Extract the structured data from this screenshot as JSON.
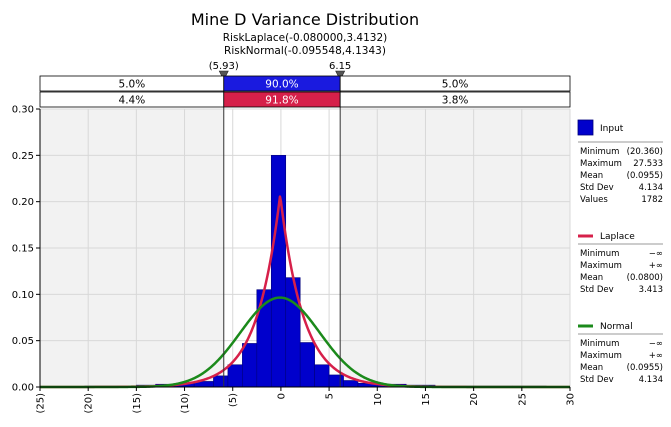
{
  "chart_data": {
    "type": "bar",
    "title": "Mine D Variance Distribution",
    "subtitles": [
      "RiskLaplace(-0.080000,3.4132)",
      "RiskNormal(-0.095548,4.1343)"
    ],
    "xlim": [
      -25,
      30
    ],
    "ylim": [
      0,
      0.3
    ],
    "x_ticks": [
      -25,
      -20,
      -15,
      -10,
      -5,
      0,
      5,
      10,
      15,
      20,
      25,
      30
    ],
    "x_tick_labels": [
      "(25)",
      "(20)",
      "(15)",
      "(10)",
      "(5)",
      "0",
      "5",
      "10",
      "15",
      "20",
      "25",
      "30"
    ],
    "y_ticks": [
      0,
      0.05,
      0.1,
      0.15,
      0.2,
      0.25,
      0.3
    ],
    "y_tick_labels": [
      "0.00",
      "0.05",
      "0.10",
      "0.15",
      "0.20",
      "0.25",
      "0.30"
    ],
    "grid": true,
    "legend_position": "right",
    "delimiters": {
      "left_label": "(5.93)",
      "right_label": "6.15",
      "left_value": -5.93,
      "right_value": 6.15
    },
    "bands": {
      "input": {
        "left": "5.0%",
        "middle": "90.0%",
        "right": "5.0%",
        "color": "#1a1adf"
      },
      "laplace": {
        "left": "4.4%",
        "middle": "91.8%",
        "right": "3.8%",
        "color": "#d6204a"
      }
    },
    "histogram": {
      "name": "Input",
      "color": "#0000cc",
      "bins": [
        {
          "x0": -20.36,
          "x1": -17.0,
          "value": 0.001
        },
        {
          "x0": -17.0,
          "x1": -15.0,
          "value": 0.001
        },
        {
          "x0": -15.0,
          "x1": -13.0,
          "value": 0.002
        },
        {
          "x0": -13.0,
          "x1": -11.0,
          "value": 0.003
        },
        {
          "x0": -11.0,
          "x1": -9.0,
          "value": 0.004
        },
        {
          "x0": -9.0,
          "x1": -7.0,
          "value": 0.006
        },
        {
          "x0": -7.0,
          "x1": -5.5,
          "value": 0.012
        },
        {
          "x0": -5.5,
          "x1": -4.0,
          "value": 0.024
        },
        {
          "x0": -4.0,
          "x1": -2.5,
          "value": 0.047
        },
        {
          "x0": -2.5,
          "x1": -1.0,
          "value": 0.105
        },
        {
          "x0": -1.0,
          "x1": 0.5,
          "value": 0.25
        },
        {
          "x0": 0.5,
          "x1": 2.0,
          "value": 0.118
        },
        {
          "x0": 2.0,
          "x1": 3.5,
          "value": 0.048
        },
        {
          "x0": 3.5,
          "x1": 5.0,
          "value": 0.024
        },
        {
          "x0": 5.0,
          "x1": 6.5,
          "value": 0.013
        },
        {
          "x0": 6.5,
          "x1": 8.0,
          "value": 0.007
        },
        {
          "x0": 8.0,
          "x1": 10.0,
          "value": 0.004
        },
        {
          "x0": 10.0,
          "x1": 13.0,
          "value": 0.003
        },
        {
          "x0": 13.0,
          "x1": 16.0,
          "value": 0.002
        },
        {
          "x0": 16.0,
          "x1": 20.0,
          "value": 0.001
        },
        {
          "x0": 20.0,
          "x1": 24.0,
          "value": 0.001
        },
        {
          "x0": 24.0,
          "x1": 27.533,
          "value": 0.001
        }
      ]
    },
    "curves": [
      {
        "name": "Laplace",
        "dist": "laplace",
        "mu": -0.08,
        "sigma": 3.4132,
        "color": "#d6204a"
      },
      {
        "name": "Normal",
        "dist": "normal",
        "mu": -0.095548,
        "sigma": 4.1343,
        "color": "#1b8a1b"
      }
    ],
    "legend": [
      {
        "name": "Input",
        "swatch": "box",
        "color": "#0000cc",
        "stats": [
          {
            "label": "Minimum",
            "value": "(20.360)"
          },
          {
            "label": "Maximum",
            "value": "27.533"
          },
          {
            "label": "Mean",
            "value": "(0.0955)"
          },
          {
            "label": "Std Dev",
            "value": "4.134"
          },
          {
            "label": "Values",
            "value": "1782"
          }
        ]
      },
      {
        "name": "Laplace",
        "swatch": "line",
        "color": "#d6204a",
        "stats": [
          {
            "label": "Minimum",
            "value": "−∞"
          },
          {
            "label": "Maximum",
            "value": "+∞"
          },
          {
            "label": "Mean",
            "value": "(0.0800)"
          },
          {
            "label": "Std Dev",
            "value": "3.413"
          }
        ]
      },
      {
        "name": "Normal",
        "swatch": "line",
        "color": "#1b8a1b",
        "stats": [
          {
            "label": "Minimum",
            "value": "−∞"
          },
          {
            "label": "Maximum",
            "value": "+∞"
          },
          {
            "label": "Mean",
            "value": "(0.0955)"
          },
          {
            "label": "Std Dev",
            "value": "4.134"
          }
        ]
      }
    ]
  }
}
